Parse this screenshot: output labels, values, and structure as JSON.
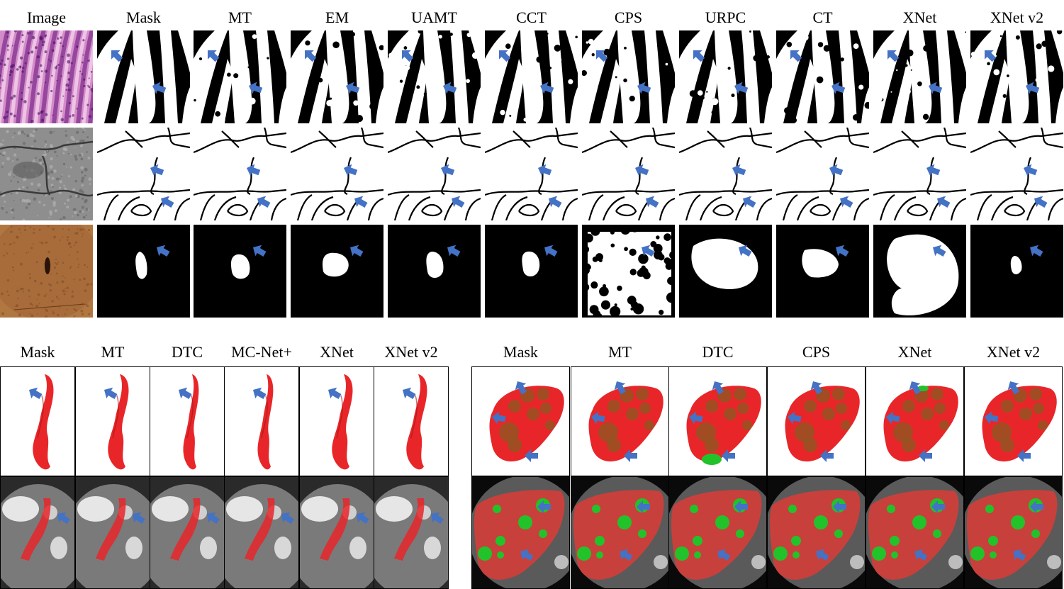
{
  "top_panel": {
    "headers": [
      "Image",
      "Mask",
      "MT",
      "EM",
      "UAMT",
      "CCT",
      "CPS",
      "URPC",
      "CT",
      "XNet",
      "XNet v2"
    ],
    "rows": [
      "histology-glands",
      "electron-microscopy-membranes",
      "dermoscopy-lesion"
    ]
  },
  "bottom_left_panel": {
    "headers": [
      "Mask",
      "MT",
      "DTC",
      "MC-Net+",
      "XNet",
      "XNet v2"
    ]
  },
  "bottom_right_panel": {
    "headers": [
      "Mask",
      "MT",
      "DTC",
      "CPS",
      "XNet",
      "XNet v2"
    ]
  },
  "colors": {
    "arrow": "#4472c4",
    "segmentation_red": "#e8262a",
    "segmentation_green": "#22c22a",
    "histology_pink": "#c2549a",
    "skin_brown": "#a86b3a"
  }
}
